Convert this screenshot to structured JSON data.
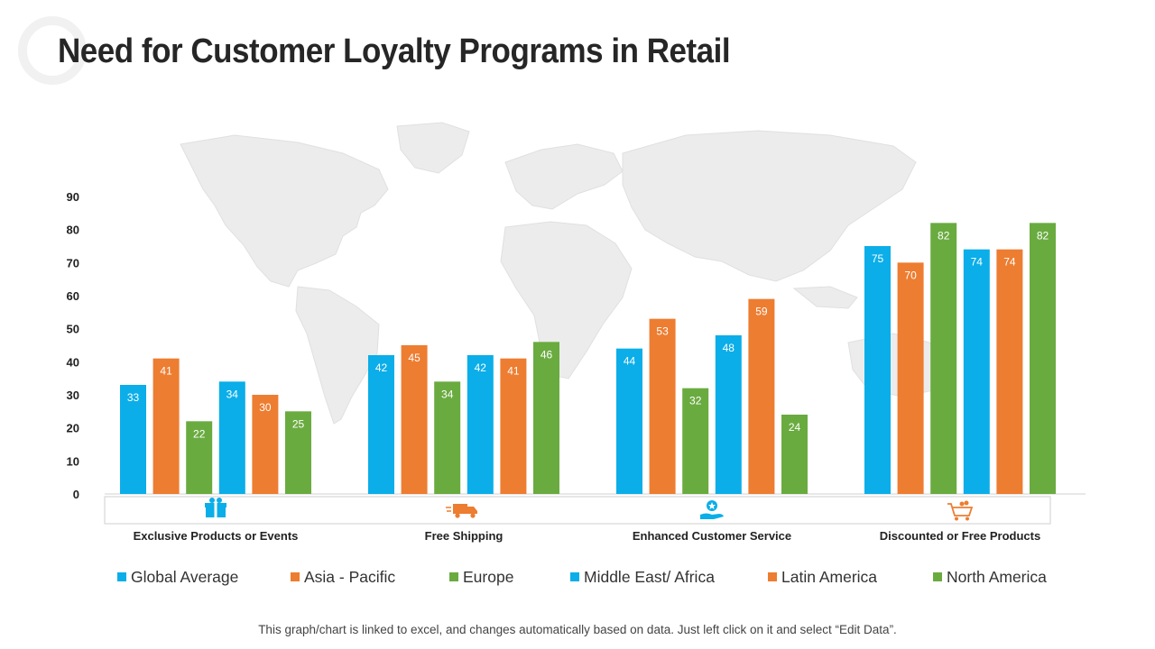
{
  "title": "Need for Customer Loyalty Programs in Retail",
  "footnote": "This graph/chart is linked to excel, and changes automatically  based on data. Just left click on it and select “Edit Data”.",
  "chart_data": {
    "type": "bar",
    "categories": [
      "Exclusive Products or Events",
      "Free Shipping",
      "Enhanced Customer Service",
      "Discounted or Free Products"
    ],
    "category_icons": [
      "gift-box-icon",
      "delivery-truck-icon",
      "customer-service-hand-star-icon",
      "shopping-cart-icon"
    ],
    "series": [
      {
        "name": "Global Average",
        "color": "#0BAEE8",
        "values": [
          33,
          42,
          44,
          75
        ]
      },
      {
        "name": "Asia - Pacific",
        "color": "#ED7D31",
        "values": [
          41,
          45,
          53,
          70
        ]
      },
      {
        "name": "Europe",
        "color": "#6AAB40",
        "values": [
          22,
          34,
          32,
          82
        ]
      },
      {
        "name": "Middle East/ Africa",
        "color": "#0BAEE8",
        "values": [
          34,
          42,
          48,
          74
        ]
      },
      {
        "name": "Latin America",
        "color": "#ED7D31",
        "values": [
          30,
          41,
          59,
          74
        ]
      },
      {
        "name": "North America",
        "color": "#6AAB40",
        "values": [
          25,
          46,
          24,
          82
        ]
      }
    ],
    "ylim": [
      0,
      90
    ],
    "yticks": [
      0,
      10,
      20,
      30,
      40,
      50,
      60,
      70,
      80,
      90
    ],
    "grid": false,
    "legend": "bottom",
    "background": "world-map"
  }
}
